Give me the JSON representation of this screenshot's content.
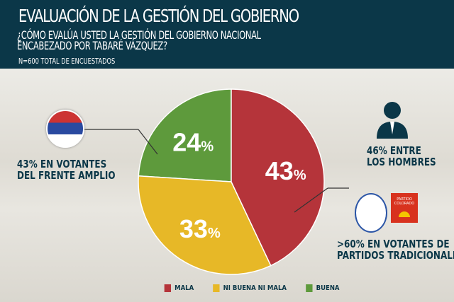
{
  "header": {
    "title": "EVALUACIÓN DE LA GESTIÓN DEL GOBIERNO",
    "question_line1": "¿CÓMO EVALÚA USTED LA GESTIÓN DEL GOBIERNO NACIONAL",
    "question_line2": "ENCABEZADO POR TABARÉ VÁZQUEZ?",
    "sample": "N=600 TOTAL DE ENCUESTADOS"
  },
  "notes": {
    "frente_amplio_1": "43% EN VOTANTES",
    "frente_amplio_2": "DEL FRENTE AMPLIO",
    "hombres_1": "46% ENTRE",
    "hombres_2": "LOS HOMBRES",
    "tradicionales_1": ">60% EN VOTANTES DE",
    "tradicionales_2": "PARTIDOS TRADICIONALES",
    "colorado_logo": "PARTIDO COLORADO"
  },
  "chart_data": {
    "type": "pie",
    "title": "EVALUACIÓN DE LA GESTIÓN DEL GOBIERNO",
    "categories": [
      "MALA",
      "NI BUENA NI MALA",
      "BUENA"
    ],
    "values": [
      43,
      33,
      24
    ],
    "labels": [
      "43%",
      "33%",
      "24%"
    ],
    "colors": [
      "#b5343a",
      "#e7b827",
      "#5e9a3c"
    ],
    "legend": "bottom"
  }
}
